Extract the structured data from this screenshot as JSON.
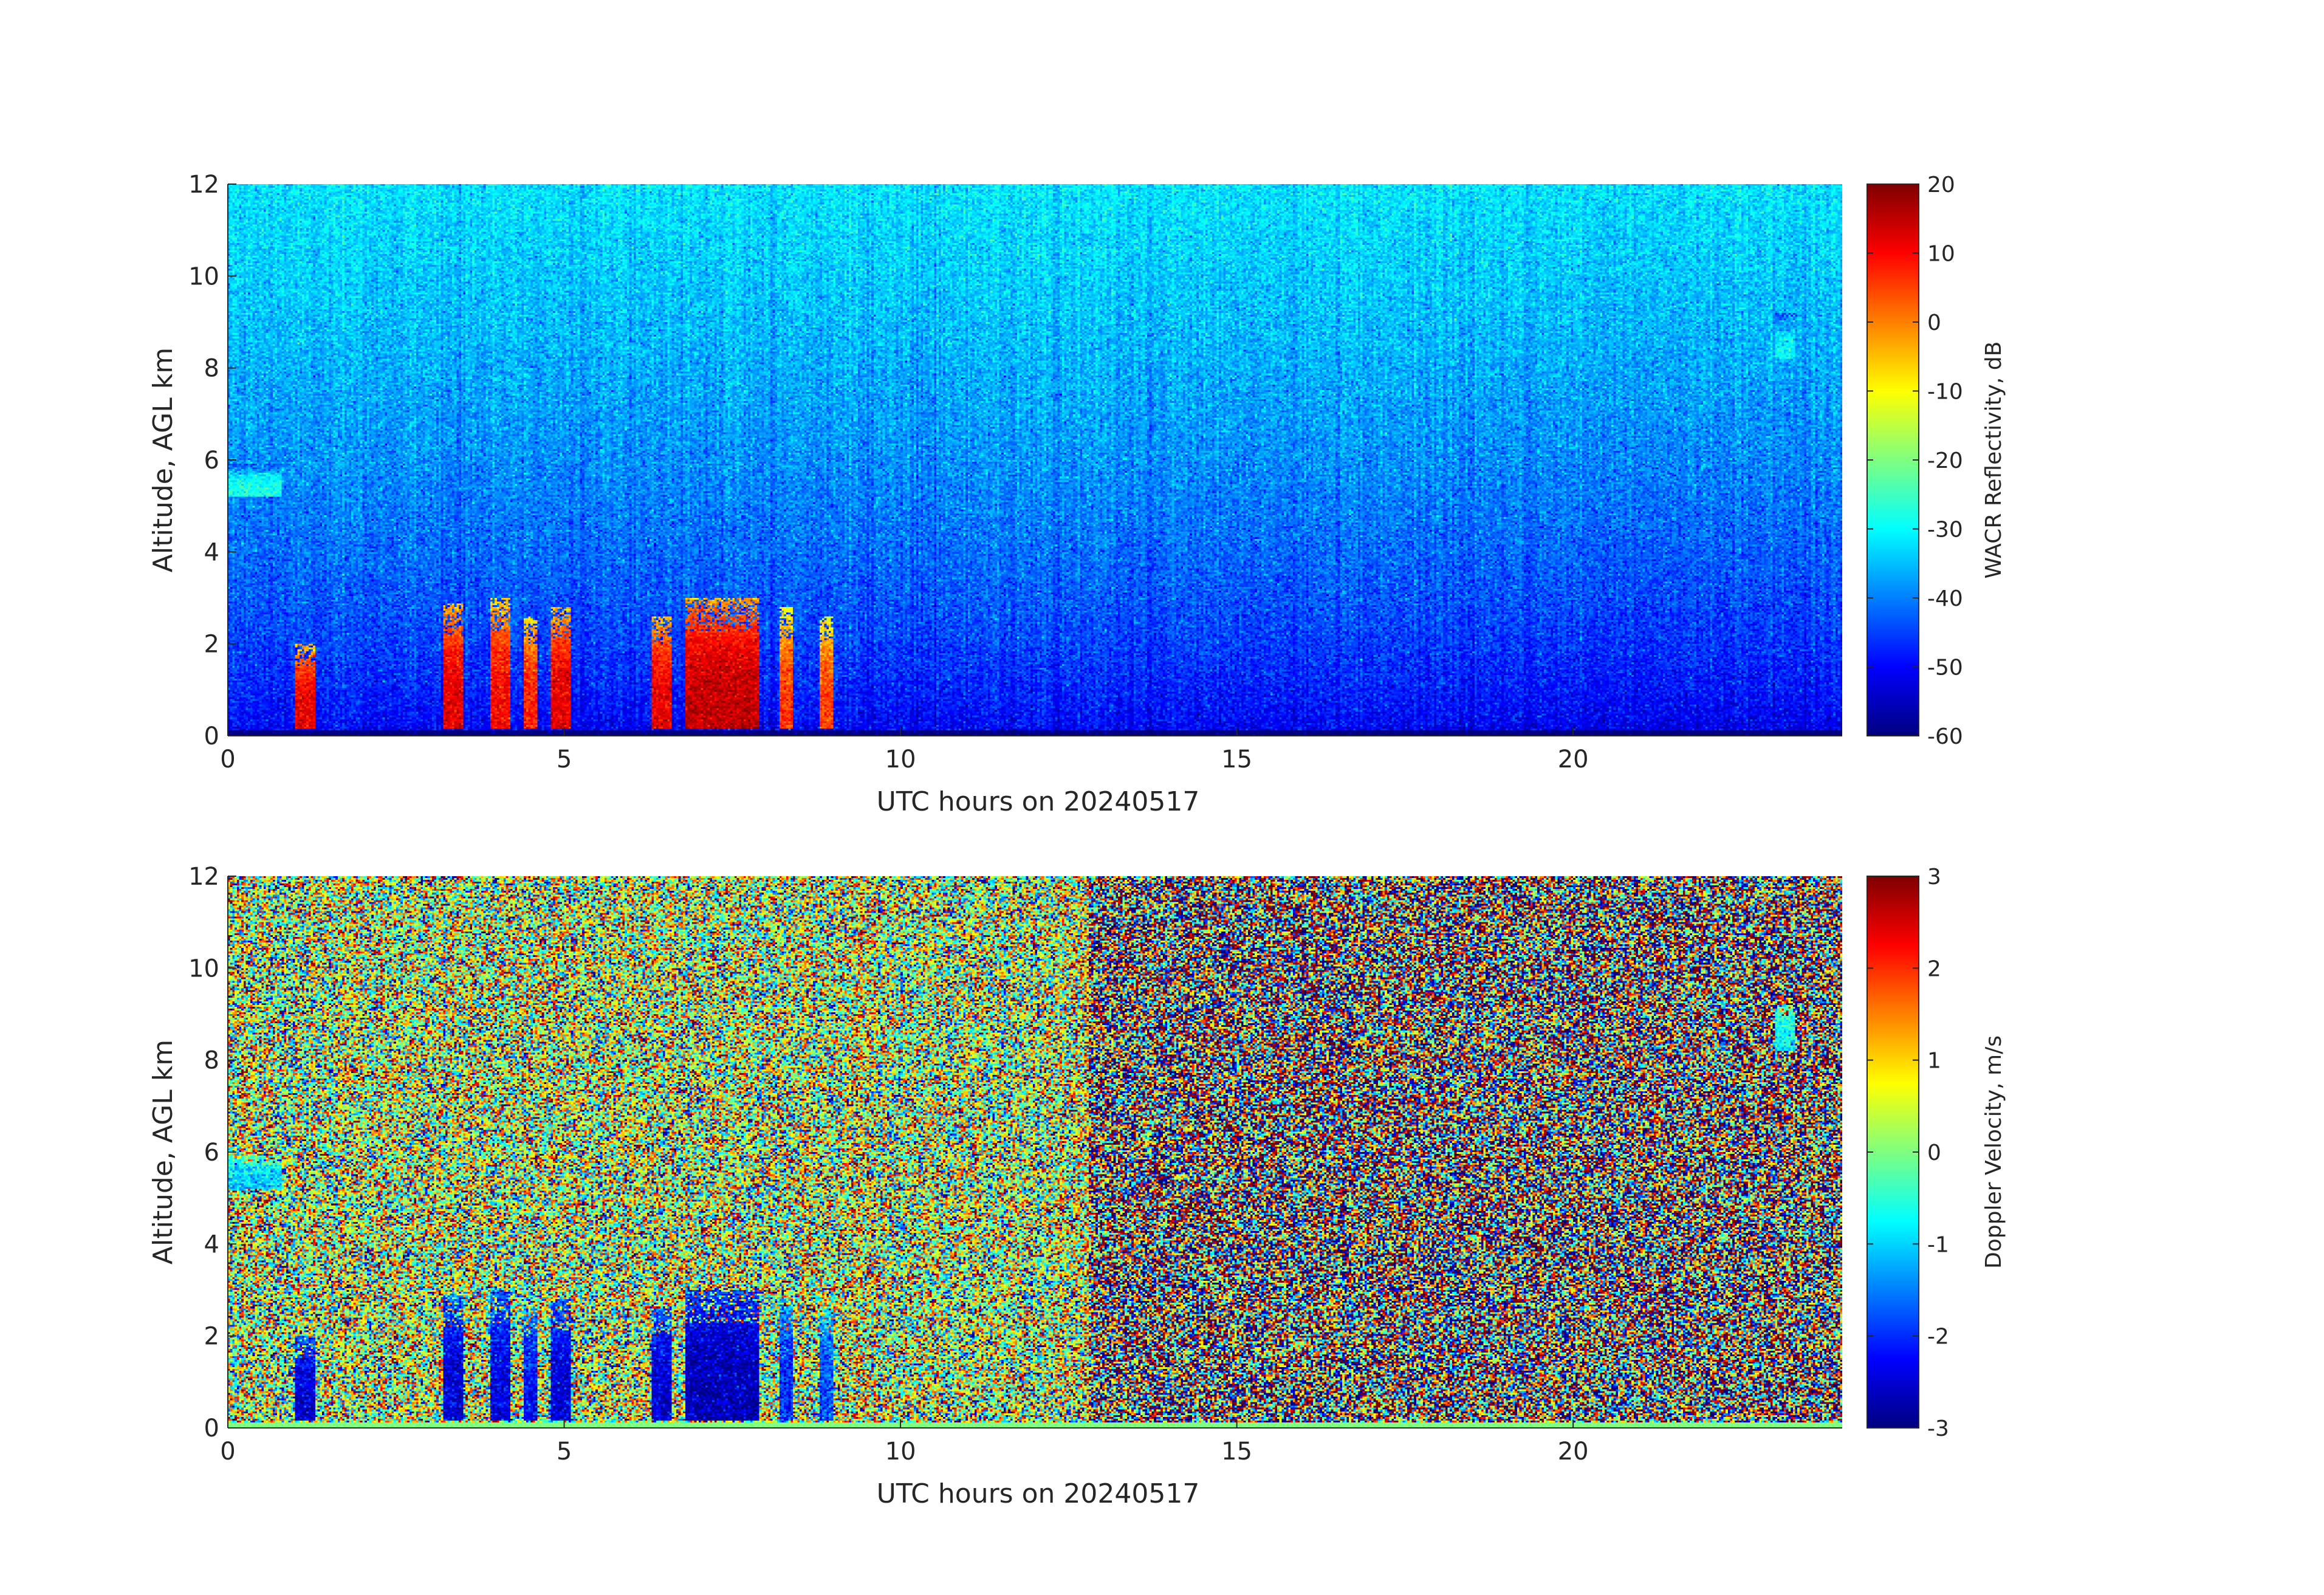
{
  "chart_data": [
    {
      "type": "heatmap",
      "xlabel": "UTC hours on 20240517",
      "ylabel": "Altitude, AGL km",
      "xlim": [
        0,
        24
      ],
      "ylim": [
        0,
        12
      ],
      "x_ticks": [
        0,
        5,
        10,
        15,
        20
      ],
      "y_ticks": [
        0,
        2,
        4,
        6,
        8,
        10,
        12
      ],
      "colorbar": {
        "label": "WACR Reflectivity, dB",
        "range": [
          -60,
          20
        ],
        "ticks": [
          -60,
          -50,
          -40,
          -30,
          -20,
          -10,
          0,
          10,
          20
        ],
        "colormap": "jet"
      },
      "field": "reflectivity",
      "background_trend": "approx -50 dB near surface rising to approx -32 dB at 12 km (noise floor)",
      "features": [
        {
          "t_start": 1.0,
          "t_end": 1.3,
          "z_top": 2.0,
          "value": 12
        },
        {
          "t_start": 3.2,
          "t_end": 3.5,
          "z_top": 2.9,
          "value": 12
        },
        {
          "t_start": 3.9,
          "t_end": 4.2,
          "z_top": 3.0,
          "value": 10
        },
        {
          "t_start": 4.4,
          "t_end": 4.6,
          "z_top": 2.6,
          "value": 8
        },
        {
          "t_start": 4.8,
          "t_end": 5.1,
          "z_top": 2.8,
          "value": 12
        },
        {
          "t_start": 6.3,
          "t_end": 6.6,
          "z_top": 2.6,
          "value": 12
        },
        {
          "t_start": 6.8,
          "t_end": 7.9,
          "z_top": 3.0,
          "value": 15
        },
        {
          "t_start": 8.2,
          "t_end": 8.4,
          "z_top": 2.8,
          "value": 6
        },
        {
          "t_start": 8.8,
          "t_end": 9.0,
          "z_top": 2.6,
          "value": 5
        },
        {
          "t_start": 0.0,
          "t_end": 0.8,
          "z_bottom": 5.2,
          "z_top": 5.9,
          "value": -28
        },
        {
          "t_start": 23.0,
          "t_end": 23.3,
          "z_bottom": 8.2,
          "z_top": 9.2,
          "value": -30
        }
      ]
    },
    {
      "type": "heatmap",
      "xlabel": "UTC hours on 20240517",
      "ylabel": "Altitude, AGL km",
      "xlim": [
        0,
        24
      ],
      "ylim": [
        0,
        12
      ],
      "x_ticks": [
        0,
        5,
        10,
        15,
        20
      ],
      "y_ticks": [
        0,
        2,
        4,
        6,
        8,
        10,
        12
      ],
      "colorbar": {
        "label": "Doppler Velocity, m/s",
        "range": [
          -3,
          3
        ],
        "ticks": [
          -3,
          -2,
          -1,
          0,
          1,
          2,
          3
        ],
        "colormap": "jet"
      },
      "field": "doppler_velocity",
      "background_trend": "random noise spanning -3 to 3 m/s; greener (near 0) from 0 to 13 h, more saturated red/blue from 13 to 24 h",
      "features": [
        {
          "t_start": 1.0,
          "t_end": 1.3,
          "z_top": 2.0,
          "value": -2.5
        },
        {
          "t_start": 3.2,
          "t_end": 3.5,
          "z_top": 2.9,
          "value": -2.5
        },
        {
          "t_start": 3.9,
          "t_end": 4.2,
          "z_top": 3.0,
          "value": -2.4
        },
        {
          "t_start": 4.4,
          "t_end": 4.6,
          "z_top": 2.6,
          "value": -2.2
        },
        {
          "t_start": 4.8,
          "t_end": 5.1,
          "z_top": 2.8,
          "value": -2.5
        },
        {
          "t_start": 6.3,
          "t_end": 6.6,
          "z_top": 2.6,
          "value": -2.5
        },
        {
          "t_start": 6.8,
          "t_end": 7.9,
          "z_top": 3.0,
          "value": -2.7
        },
        {
          "t_start": 8.2,
          "t_end": 8.4,
          "z_top": 2.8,
          "value": -2.0
        },
        {
          "t_start": 8.8,
          "t_end": 9.0,
          "z_top": 2.6,
          "value": -1.8
        },
        {
          "t_start": 0.0,
          "t_end": 0.8,
          "z_bottom": 5.2,
          "z_top": 5.9,
          "value": -1.0
        },
        {
          "t_start": 23.0,
          "t_end": 23.3,
          "z_bottom": 8.2,
          "z_top": 9.2,
          "value": -0.8
        }
      ]
    }
  ]
}
